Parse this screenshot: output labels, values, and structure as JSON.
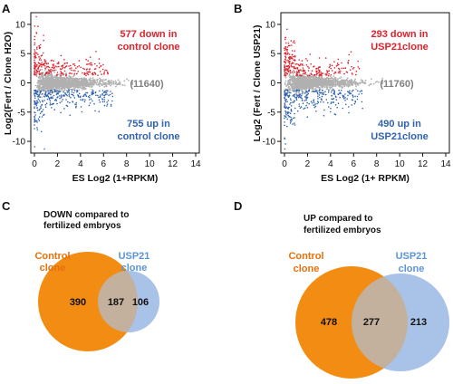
{
  "chart_data": [
    {
      "type": "scatter",
      "panel": "A",
      "ylabel": "Log2(Fert / Clone H2O)",
      "xlabel": "ES Log2 (1+RPKM)",
      "xlim": [
        0,
        14
      ],
      "ylim": [
        -12,
        12
      ],
      "xticks": [
        0,
        2,
        4,
        6,
        8,
        10,
        12,
        14
      ],
      "yticks": [
        -10,
        -5,
        0,
        5,
        10
      ],
      "annotations": {
        "down": [
          "577 down in",
          "control clone"
        ],
        "neutral": "(11640)",
        "up": [
          "755 up in",
          "control clone"
        ]
      }
    },
    {
      "type": "scatter",
      "panel": "B",
      "ylabel": "Log2 (Fert / Clone USP21)",
      "xlabel": "ES Log2 (1+ RPKM)",
      "xlim": [
        0,
        14
      ],
      "ylim": [
        -12,
        12
      ],
      "xticks": [
        0,
        2,
        4,
        6,
        8,
        10,
        12,
        14
      ],
      "yticks": [
        -10,
        -5,
        0,
        5,
        10
      ],
      "annotations": {
        "down": [
          "293 down in",
          "USP21clone"
        ],
        "neutral": "(11760)",
        "up": [
          "490 up in",
          "USP21clone"
        ]
      }
    },
    {
      "type": "venn",
      "panel": "C",
      "title": [
        "DOWN compared to",
        "fertilized embryos"
      ],
      "left_label": [
        "Control",
        "clone"
      ],
      "right_label": [
        "USP21",
        "clone"
      ],
      "values": {
        "left_only": 390,
        "both": 187,
        "right_only": 106
      }
    },
    {
      "type": "venn",
      "panel": "D",
      "title": [
        "UP compared to",
        "fertilized embryos"
      ],
      "left_label": [
        "Control",
        "clone"
      ],
      "right_label": [
        "USP21",
        "clone"
      ],
      "values": {
        "left_only": 478,
        "both": 277,
        "right_only": 213
      }
    }
  ],
  "colors": {
    "down": "#e0202a",
    "up": "#2f62b0",
    "neutral": "#b0b0b0",
    "control": "#f28c13",
    "usp21": "#a9c3e8",
    "overlap": "#b28e73"
  }
}
